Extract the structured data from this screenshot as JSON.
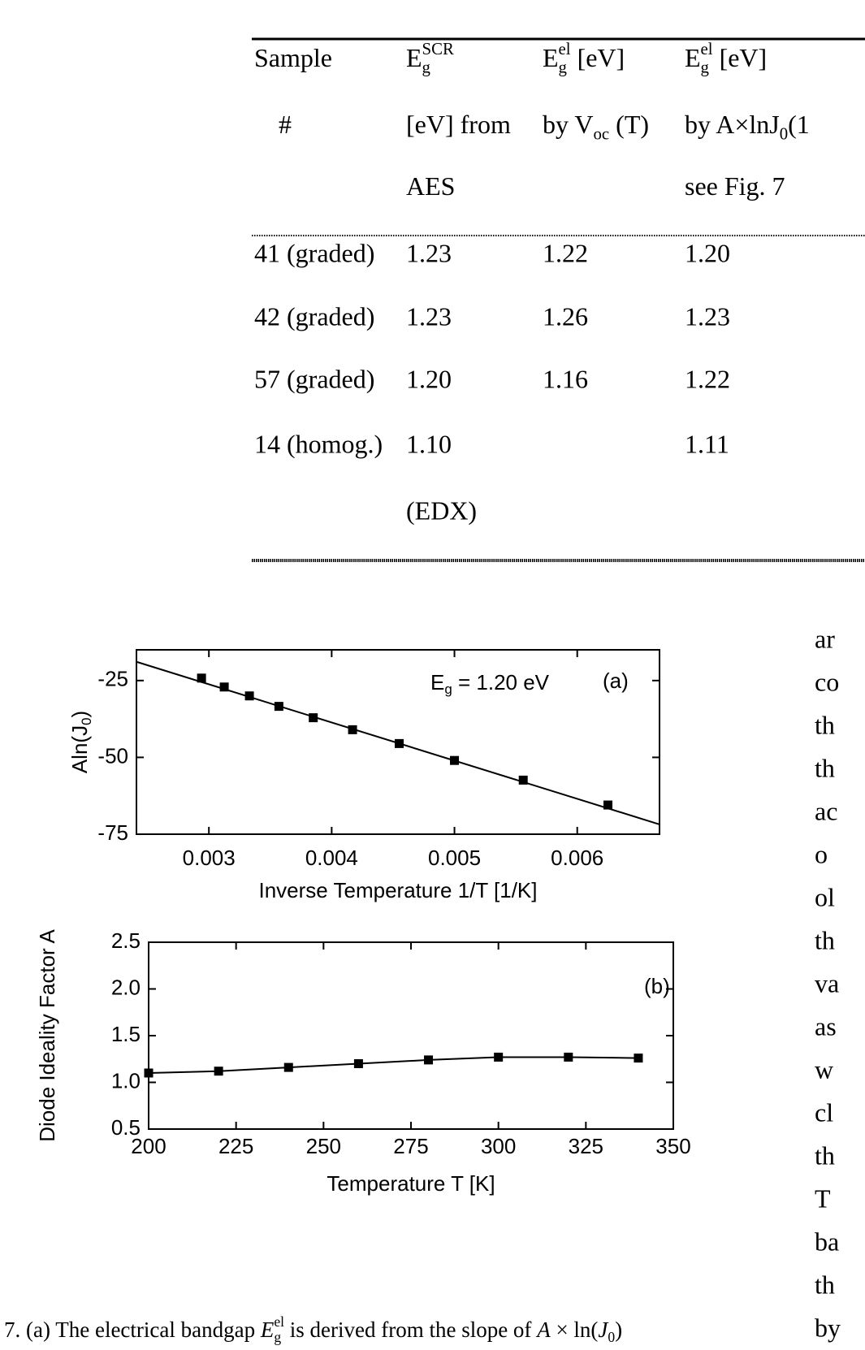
{
  "table": {
    "header": [
      [
        [
          {
            "text": "Sample"
          }
        ],
        [
          {
            "text": "E"
          },
          {
            "sub": "g"
          },
          {
            "sup": "SCR"
          }
        ],
        [
          {
            "text": "E"
          },
          {
            "sub": "g"
          },
          {
            "sup": "el"
          },
          {
            "text": " [eV]"
          }
        ],
        [
          {
            "text": "E"
          },
          {
            "sub": "g"
          },
          {
            "sup": "el"
          },
          {
            "text": " [eV]"
          }
        ]
      ],
      [
        [
          {
            "text": "#"
          }
        ],
        [
          {
            "text": "[eV] from"
          }
        ],
        [
          {
            "text": "by V"
          },
          {
            "sub": "oc"
          },
          {
            "text": " (T)"
          }
        ],
        [
          {
            "text": "by A×lnJ"
          },
          {
            "sub": "0"
          },
          {
            "text": "(1"
          }
        ]
      ],
      [
        null,
        [
          {
            "text": "AES"
          }
        ],
        null,
        [
          {
            "text": "see Fig. 7"
          }
        ]
      ]
    ],
    "rows": [
      [
        "41 (graded)",
        "1.23",
        "1.22",
        "1.20"
      ],
      [
        "42 (graded)",
        "1.23",
        "1.26",
        "1.23"
      ],
      [
        "57 (graded)",
        "1.20",
        "1.16",
        "1.22"
      ],
      [
        "14 (homog.)",
        "1.10",
        null,
        "1.11"
      ],
      [
        null,
        "(EDX)",
        null,
        null
      ]
    ]
  },
  "chart_data": [
    {
      "type": "scatter",
      "y_label": [
        {
          "text": "Aln(J"
        },
        {
          "sub": "0"
        },
        {
          "text": ")"
        }
      ],
      "x_label": [
        {
          "text": "Inverse Temperature 1/T [1/K]"
        }
      ],
      "annotations": [
        [
          {
            "text": "E"
          },
          {
            "sub": "g"
          },
          {
            "text": "  = 1.20 eV"
          }
        ],
        [
          {
            "text": "(a)"
          }
        ]
      ],
      "xlim": [
        0.00241,
        0.00667
      ],
      "ylim": [
        -75,
        -15
      ],
      "xticks": [
        0.003,
        0.004,
        0.005,
        0.006
      ],
      "yticks": [
        -75,
        -50,
        -25
      ],
      "series": [
        {
          "style": "markers",
          "color": "#000000",
          "x": [
            0.00294,
            0.003125,
            0.00333,
            0.00357,
            0.00385,
            0.00417,
            0.00455,
            0.005,
            0.00556,
            0.00625
          ],
          "values": [
            -24.2,
            -27.1,
            -30,
            -33.4,
            -37.1,
            -41,
            -45.5,
            -51,
            -57.4,
            -65.5
          ]
        },
        {
          "style": "line",
          "color": "#000000",
          "x": [
            0.00241,
            0.00667
          ],
          "values": [
            -18.9,
            -71.8
          ]
        }
      ]
    },
    {
      "type": "scatter",
      "y_label": [
        {
          "text": "Diode Ideality Factor A"
        }
      ],
      "x_label": [
        {
          "text": "Temperature T [K]"
        }
      ],
      "annotations": [
        [
          {
            "text": "(b)"
          }
        ]
      ],
      "xlim": [
        200,
        350
      ],
      "ylim": [
        0.5,
        2.5
      ],
      "xticks": [
        200,
        225,
        250,
        275,
        300,
        325,
        350
      ],
      "yticks": [
        0.5,
        {
          "value": 1,
          "label": "1.0"
        },
        1.5,
        {
          "value": 2,
          "label": "2.0"
        },
        2.5
      ],
      "series": [
        {
          "style": "markers-line",
          "color": "#000000",
          "x": [
            200,
            220,
            240,
            260,
            280,
            300,
            320,
            340
          ],
          "values": [
            1.1,
            1.12,
            1.16,
            1.2,
            1.24,
            1.27,
            1.27,
            1.26
          ]
        }
      ]
    }
  ],
  "caption": [
    {
      "text": "7.   (a) The electrical bandgap "
    },
    {
      "italic": "E"
    },
    {
      "sub": "g"
    },
    {
      "sup": "el"
    },
    {
      "text": " is derived from the slope of "
    },
    {
      "italic": "A"
    },
    {
      "text": " × ln("
    },
    {
      "italic": "J"
    },
    {
      "sub": "0"
    },
    {
      "text": ")"
    }
  ],
  "side_text": [
    "ar",
    "co",
    "th",
    "th",
    "ac",
    "o",
    "ol",
    "th",
    "va",
    "as",
    "w",
    "cl",
    "th",
    "T",
    "ba",
    "th",
    "by"
  ]
}
